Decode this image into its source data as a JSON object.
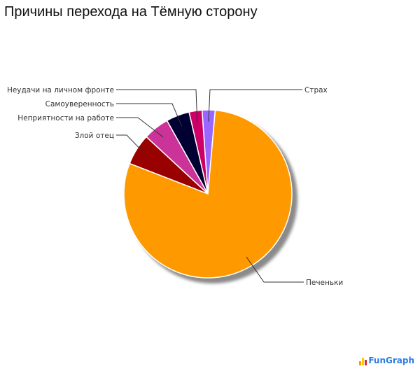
{
  "title": "Причины перехода на Тёмную сторону",
  "logo": {
    "text": "FunGraph",
    "color": "#2a7de1"
  },
  "chart_data": {
    "type": "pie",
    "title": "Причины перехода на Тёмную сторону",
    "start_angle_deg": -4,
    "direction": "counterclockwise",
    "slices": [
      {
        "label": "Страх",
        "value": 2.5,
        "color": "#9966ff"
      },
      {
        "label": "Неудачи на личном фронте",
        "value": 2.5,
        "color": "#cc0066"
      },
      {
        "label": "Самоуверенность",
        "value": 4.5,
        "color": "#000033"
      },
      {
        "label": "Неприятности на работе",
        "value": 5,
        "color": "#cc3399"
      },
      {
        "label": "Злой отец",
        "value": 6,
        "color": "#990000"
      },
      {
        "label": "Печеньки",
        "value": 79.5,
        "color": "#ff9900"
      }
    ],
    "legend_position": "callout labels"
  }
}
